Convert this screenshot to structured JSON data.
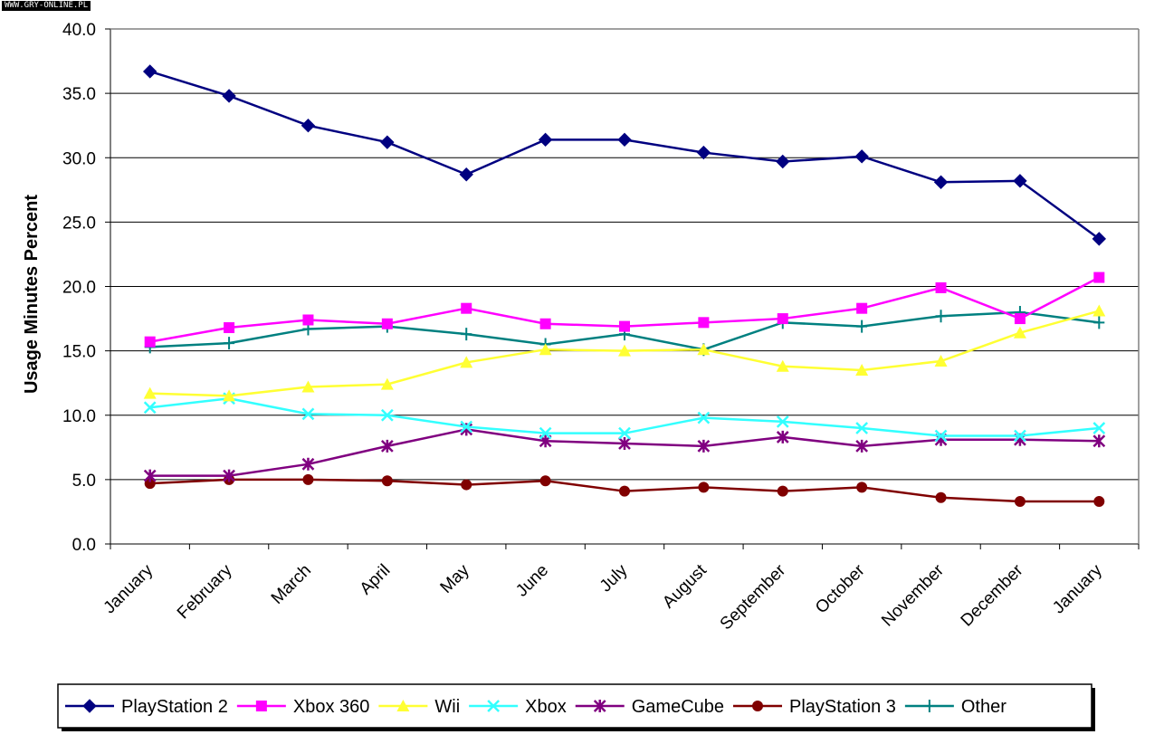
{
  "watermark": "WWW.GRY-ONLINE.PL",
  "chart_data": {
    "type": "line",
    "title": "",
    "xlabel": "",
    "ylabel": "Usage Minutes Percent",
    "ylim": [
      0,
      40
    ],
    "y_ticks": [
      "0.0",
      "5.0",
      "10.0",
      "15.0",
      "20.0",
      "25.0",
      "30.0",
      "35.0",
      "40.0"
    ],
    "categories": [
      "January",
      "February",
      "March",
      "April",
      "May",
      "June",
      "July",
      "August",
      "September",
      "October",
      "November",
      "December",
      "January"
    ],
    "grid": "horizontal",
    "legend_position": "bottom",
    "series": [
      {
        "name": "PlayStation 2",
        "color": "#000080",
        "marker": "diamond",
        "values": [
          36.7,
          34.8,
          32.5,
          31.2,
          28.7,
          31.4,
          31.4,
          30.4,
          29.7,
          30.1,
          28.1,
          28.2,
          23.7
        ]
      },
      {
        "name": "Xbox 360",
        "color": "#ff00ff",
        "marker": "square",
        "values": [
          15.7,
          16.8,
          17.4,
          17.1,
          18.3,
          17.1,
          16.9,
          17.2,
          17.5,
          18.3,
          19.9,
          17.5,
          20.7
        ]
      },
      {
        "name": "Wii",
        "color": "#ffff33",
        "marker": "triangle",
        "values": [
          11.7,
          11.5,
          12.2,
          12.4,
          14.1,
          15.1,
          15.0,
          15.1,
          13.8,
          13.5,
          14.2,
          16.4,
          18.1
        ]
      },
      {
        "name": "Xbox",
        "color": "#33ffff",
        "marker": "x",
        "values": [
          10.6,
          11.3,
          10.1,
          10.0,
          9.1,
          8.6,
          8.6,
          9.8,
          9.5,
          9.0,
          8.4,
          8.4,
          9.0
        ]
      },
      {
        "name": "GameCube",
        "color": "#800080",
        "marker": "asterisk",
        "values": [
          5.3,
          5.3,
          6.2,
          7.6,
          8.9,
          8.0,
          7.8,
          7.6,
          8.3,
          7.6,
          8.1,
          8.1,
          8.0
        ]
      },
      {
        "name": "PlayStation 3",
        "color": "#800000",
        "marker": "circle",
        "values": [
          4.7,
          5.0,
          5.0,
          4.9,
          4.6,
          4.9,
          4.1,
          4.4,
          4.1,
          4.4,
          3.6,
          3.3,
          3.3
        ]
      },
      {
        "name": "Other",
        "color": "#008080",
        "marker": "plus",
        "values": [
          15.3,
          15.6,
          16.7,
          16.9,
          16.3,
          15.5,
          16.3,
          15.1,
          17.2,
          16.9,
          17.7,
          18.0,
          17.2
        ]
      }
    ]
  }
}
